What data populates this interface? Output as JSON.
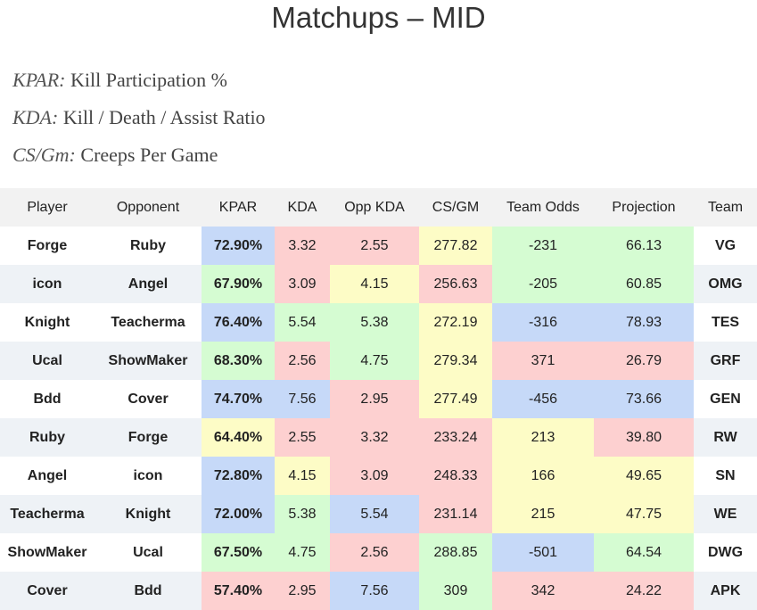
{
  "title": "Matchups – MID",
  "legend": [
    {
      "abbr": "KPAR:",
      "desc": "Kill Participation %"
    },
    {
      "abbr": "KDA:",
      "desc": "Kill / Death / Assist Ratio"
    },
    {
      "abbr": "CS/Gm:",
      "desc": "Creeps Per Game"
    }
  ],
  "headers": [
    "Player",
    "Opponent",
    "KPAR",
    "KDA",
    "Opp KDA",
    "CS/GM",
    "Team Odds",
    "Projection",
    "Team"
  ],
  "colors": {
    "blue": "#c6d9f8",
    "red": "#fdd0d0",
    "yellow": "#fdfcc6",
    "green": "#d5fcd2",
    "header": "#f2f2f2",
    "stripe": "#eef2f6"
  },
  "rows": [
    {
      "player": "Forge",
      "opponent": "Ruby",
      "kpar": "72.90%",
      "kda": "3.32",
      "opp_kda": "2.55",
      "cs": "277.82",
      "odds": "-231",
      "projection": "66.13",
      "team": "VG",
      "c": {
        "kpar": "blue",
        "kda": "red",
        "opp_kda": "red",
        "cs": "yellow",
        "odds": "green",
        "projection": "green"
      }
    },
    {
      "player": "icon",
      "opponent": "Angel",
      "kpar": "67.90%",
      "kda": "3.09",
      "opp_kda": "4.15",
      "cs": "256.63",
      "odds": "-205",
      "projection": "60.85",
      "team": "OMG",
      "c": {
        "kpar": "green",
        "kda": "red",
        "opp_kda": "yellow",
        "cs": "red",
        "odds": "green",
        "projection": "green"
      }
    },
    {
      "player": "Knight",
      "opponent": "Teacherma",
      "kpar": "76.40%",
      "kda": "5.54",
      "opp_kda": "5.38",
      "cs": "272.19",
      "odds": "-316",
      "projection": "78.93",
      "team": "TES",
      "c": {
        "kpar": "blue",
        "kda": "green",
        "opp_kda": "green",
        "cs": "yellow",
        "odds": "blue",
        "projection": "blue"
      }
    },
    {
      "player": "Ucal",
      "opponent": "ShowMaker",
      "kpar": "68.30%",
      "kda": "2.56",
      "opp_kda": "4.75",
      "cs": "279.34",
      "odds": "371",
      "projection": "26.79",
      "team": "GRF",
      "c": {
        "kpar": "green",
        "kda": "red",
        "opp_kda": "green",
        "cs": "yellow",
        "odds": "red",
        "projection": "red"
      }
    },
    {
      "player": "Bdd",
      "opponent": "Cover",
      "kpar": "74.70%",
      "kda": "7.56",
      "opp_kda": "2.95",
      "cs": "277.49",
      "odds": "-456",
      "projection": "73.66",
      "team": "GEN",
      "c": {
        "kpar": "blue",
        "kda": "blue",
        "opp_kda": "red",
        "cs": "yellow",
        "odds": "blue",
        "projection": "blue"
      }
    },
    {
      "player": "Ruby",
      "opponent": "Forge",
      "kpar": "64.40%",
      "kda": "2.55",
      "opp_kda": "3.32",
      "cs": "233.24",
      "odds": "213",
      "projection": "39.80",
      "team": "RW",
      "c": {
        "kpar": "yellow",
        "kda": "red",
        "opp_kda": "red",
        "cs": "red",
        "odds": "yellow",
        "projection": "red"
      }
    },
    {
      "player": "Angel",
      "opponent": "icon",
      "kpar": "72.80%",
      "kda": "4.15",
      "opp_kda": "3.09",
      "cs": "248.33",
      "odds": "166",
      "projection": "49.65",
      "team": "SN",
      "c": {
        "kpar": "blue",
        "kda": "yellow",
        "opp_kda": "red",
        "cs": "red",
        "odds": "yellow",
        "projection": "yellow"
      }
    },
    {
      "player": "Teacherma",
      "opponent": "Knight",
      "kpar": "72.00%",
      "kda": "5.38",
      "opp_kda": "5.54",
      "cs": "231.14",
      "odds": "215",
      "projection": "47.75",
      "team": "WE",
      "c": {
        "kpar": "blue",
        "kda": "green",
        "opp_kda": "blue",
        "cs": "red",
        "odds": "yellow",
        "projection": "yellow"
      }
    },
    {
      "player": "ShowMaker",
      "opponent": "Ucal",
      "kpar": "67.50%",
      "kda": "4.75",
      "opp_kda": "2.56",
      "cs": "288.85",
      "odds": "-501",
      "projection": "64.54",
      "team": "DWG",
      "c": {
        "kpar": "green",
        "kda": "green",
        "opp_kda": "red",
        "cs": "green",
        "odds": "blue",
        "projection": "green"
      }
    },
    {
      "player": "Cover",
      "opponent": "Bdd",
      "kpar": "57.40%",
      "kda": "2.95",
      "opp_kda": "7.56",
      "cs": "309",
      "odds": "342",
      "projection": "24.22",
      "team": "APK",
      "c": {
        "kpar": "red",
        "kda": "red",
        "opp_kda": "blue",
        "cs": "green",
        "odds": "red",
        "projection": "red"
      }
    }
  ]
}
